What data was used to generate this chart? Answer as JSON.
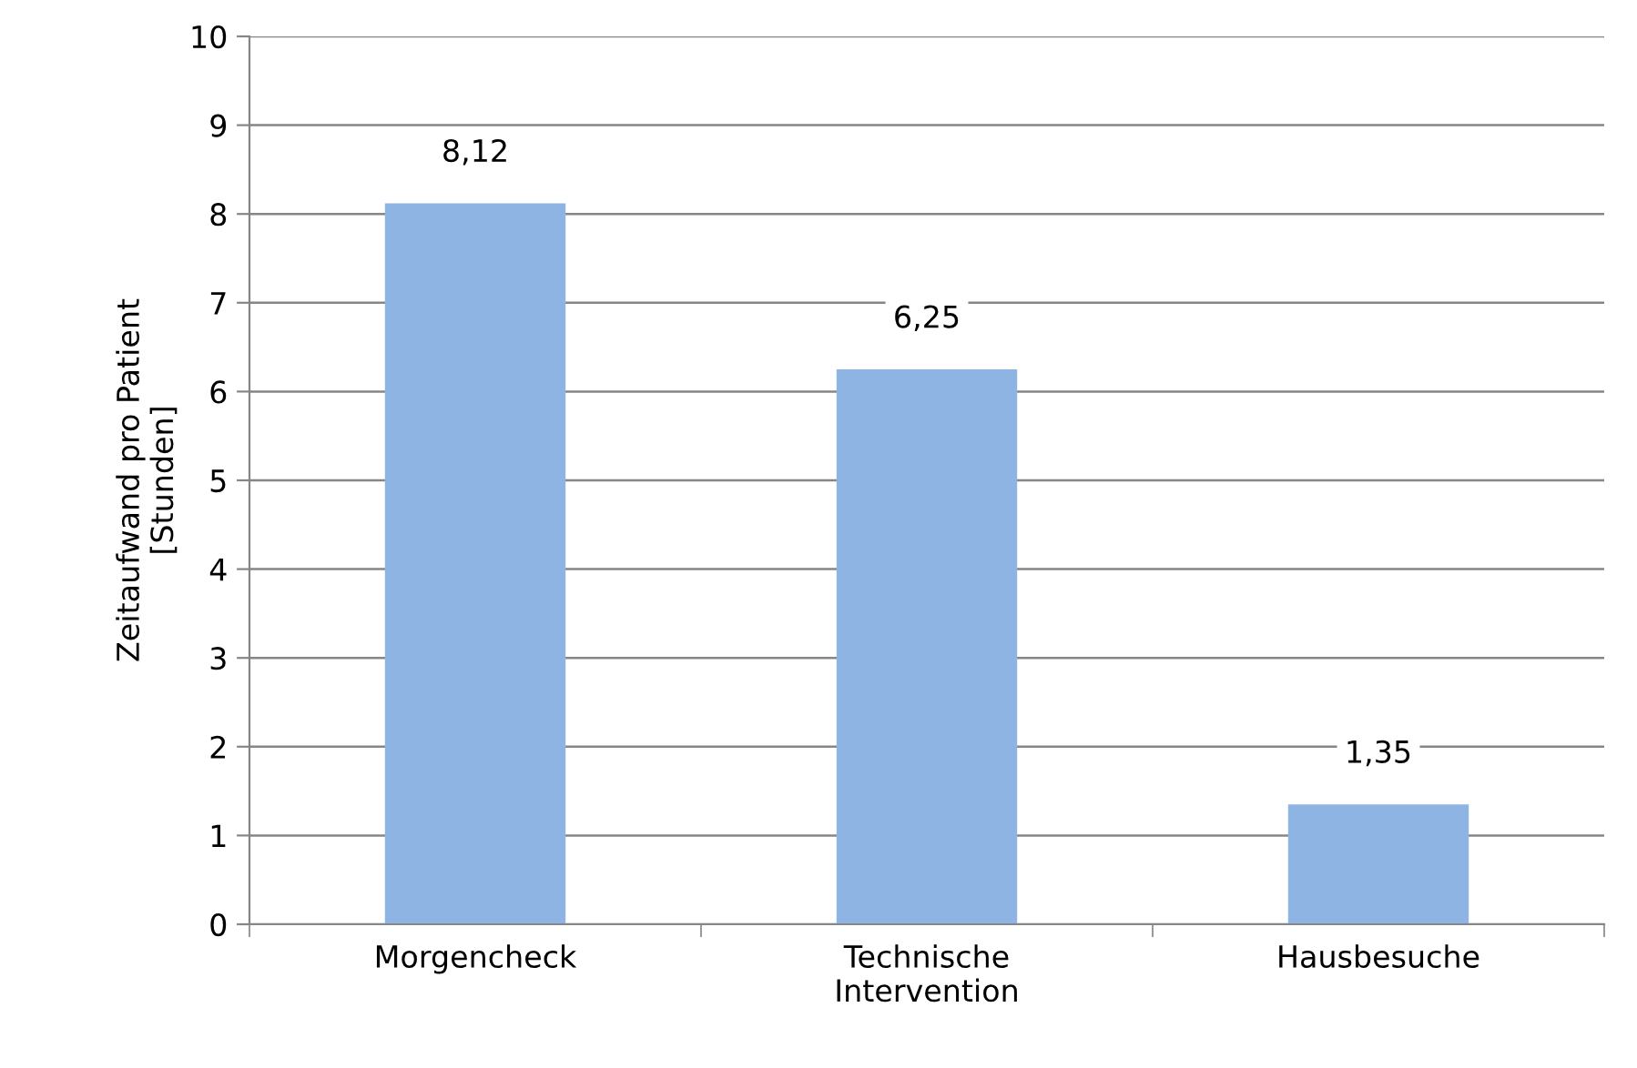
{
  "chart_data": {
    "type": "bar",
    "ylabel": "Zeitaufwand pro Patient\n[Stunden]",
    "categories": [
      "Morgencheck",
      "Technische\nIntervention",
      "Hausbesuche"
    ],
    "values": [
      8.12,
      6.25,
      1.35
    ],
    "value_labels": [
      "8,12",
      "6,25",
      "1,35"
    ],
    "color": "#8eb4e3",
    "ylim": [
      0,
      10
    ],
    "yticks": [
      0,
      1,
      2,
      3,
      4,
      5,
      6,
      7,
      8,
      9,
      10
    ],
    "grid": "y",
    "legend": false
  }
}
